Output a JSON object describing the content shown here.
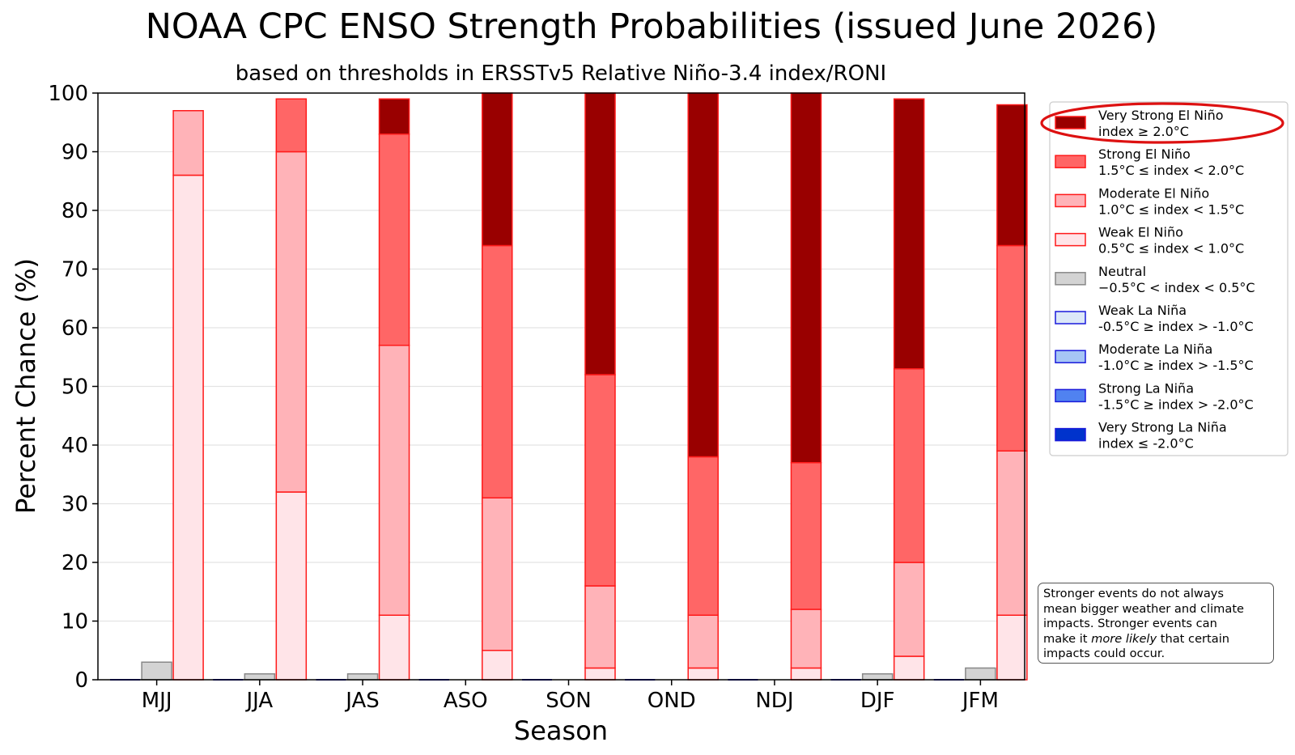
{
  "chart_data": {
    "type": "bar",
    "title": "NOAA CPC ENSO Strength Probabilities (issued June 2026)",
    "subtitle": "based on thresholds in ERSSTv5 Relative Niño-3.4 index/RONI",
    "xlabel": "Season",
    "ylabel": "Percent Chance (%)",
    "ylim": [
      0,
      100
    ],
    "yticks": [
      0,
      10,
      20,
      30,
      40,
      50,
      60,
      70,
      80,
      90,
      100
    ],
    "grid": "horizontal",
    "legend_position": "right",
    "categories": [
      "MJJ",
      "JJA",
      "JAS",
      "ASO",
      "SON",
      "OND",
      "NDJ",
      "DJF",
      "JFM"
    ],
    "neutral": {
      "name": "Neutral",
      "values": [
        3,
        1,
        1,
        0,
        0,
        0,
        0,
        1,
        2
      ],
      "color": "#d3d3d3",
      "edge": "#888888"
    },
    "la_nina_series": [
      {
        "name": "Weak La Niña",
        "values": [
          0,
          0,
          0,
          0,
          0,
          0,
          0,
          0,
          0
        ],
        "color": "#dce8f8",
        "edge": "#1a1adb"
      },
      {
        "name": "Moderate La Niña",
        "values": [
          0,
          0,
          0,
          0,
          0,
          0,
          0,
          0,
          0
        ],
        "color": "#a6c6f5",
        "edge": "#1a1adb"
      },
      {
        "name": "Strong La Niña",
        "values": [
          0,
          0,
          0,
          0,
          0,
          0,
          0,
          0,
          0
        ],
        "color": "#5082f0",
        "edge": "#1a1adb"
      },
      {
        "name": "Very Strong La Niña",
        "values": [
          0,
          0,
          0,
          0,
          0,
          0,
          0,
          0,
          0
        ],
        "color": "#0033cc",
        "edge": "#1a1adb"
      }
    ],
    "el_nino_series": [
      {
        "name": "Weak El Niño",
        "values": [
          86,
          32,
          11,
          5,
          2,
          2,
          2,
          4,
          11
        ],
        "color": "#ffe4e8",
        "edge": "#ff1a1a"
      },
      {
        "name": "Moderate El Niño",
        "values": [
          11,
          58,
          46,
          26,
          14,
          9,
          10,
          16,
          28
        ],
        "color": "#ffb3b8",
        "edge": "#ff1a1a"
      },
      {
        "name": "Strong El Niño",
        "values": [
          0,
          9,
          36,
          43,
          36,
          27,
          25,
          33,
          35
        ],
        "color": "#ff6666",
        "edge": "#ff1a1a"
      },
      {
        "name": "Very Strong El Niño",
        "values": [
          0,
          0,
          6,
          26,
          48,
          62,
          63,
          46,
          24
        ],
        "color": "#990000",
        "edge": "#ff1a1a"
      }
    ],
    "legend": [
      {
        "label1": "Very Strong El Niño",
        "label2": "index ≥ 2.0°C",
        "color": "#990000",
        "edge": "#ff1a1a",
        "highlighted": true
      },
      {
        "label1": "Strong El Niño",
        "label2": "1.5°C ≤ index < 2.0°C",
        "color": "#ff6666",
        "edge": "#ff1a1a"
      },
      {
        "label1": "Moderate El Niño",
        "label2": "1.0°C ≤ index < 1.5°C",
        "color": "#ffb3b8",
        "edge": "#ff1a1a"
      },
      {
        "label1": "Weak El Niño",
        "label2": "0.5°C ≤ index < 1.0°C",
        "color": "#ffe4e8",
        "edge": "#ff1a1a"
      },
      {
        "label1": "Neutral",
        "label2": "−0.5°C < index < 0.5°C",
        "color": "#d3d3d3",
        "edge": "#888888"
      },
      {
        "label1": "Weak La Niña",
        "label2": "-0.5°C ≥ index > -1.0°C",
        "color": "#dce8f8",
        "edge": "#1a1adb"
      },
      {
        "label1": "Moderate La Niña",
        "label2": "-1.0°C ≥ index > -1.5°C",
        "color": "#a6c6f5",
        "edge": "#1a1adb"
      },
      {
        "label1": "Strong La Niña",
        "label2": "-1.5°C ≥ index > -2.0°C",
        "color": "#5082f0",
        "edge": "#1a1adb"
      },
      {
        "label1": "Very Strong La Niña",
        "label2": "index ≤ -2.0°C",
        "color": "#0033cc",
        "edge": "#1a1adb"
      }
    ],
    "highlight_color": "#dd1111",
    "note": {
      "line1": "Stronger events do not always",
      "line2": "mean bigger weather and climate",
      "line3": "impacts. Stronger events can",
      "line4_pre": "make it ",
      "line4_em": "more likely",
      "line4_post": " that certain",
      "line5": "impacts could occur."
    }
  }
}
